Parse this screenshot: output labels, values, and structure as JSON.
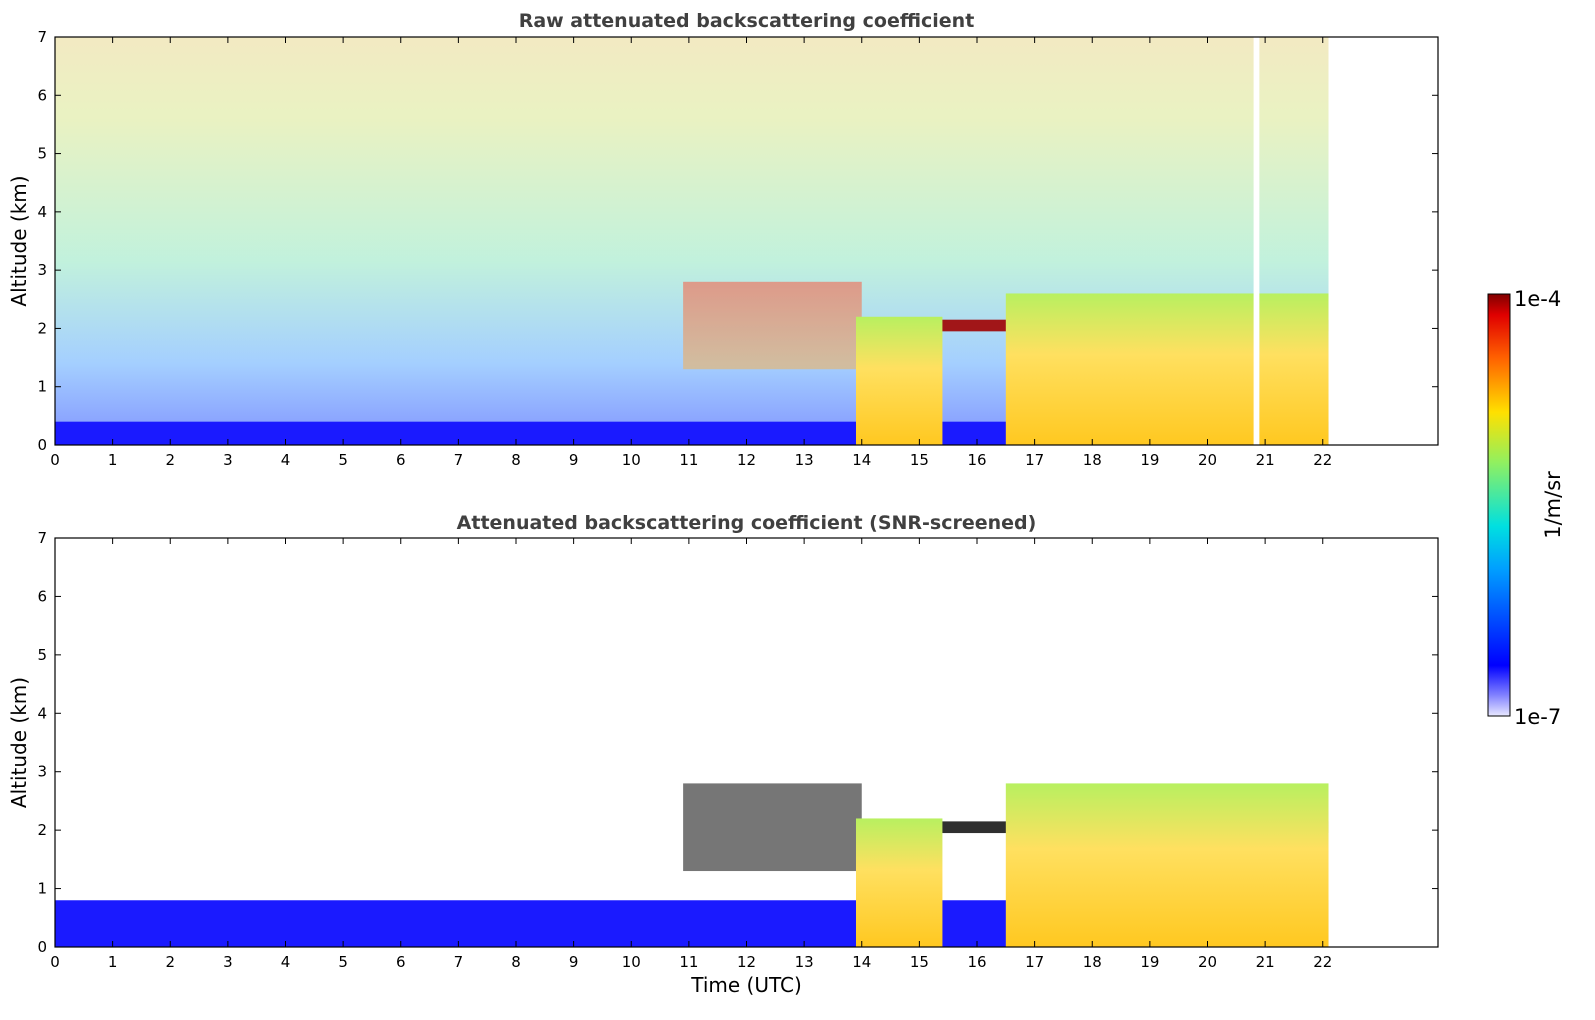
{
  "chart_data": [
    {
      "type": "heatmap",
      "title": "Raw attenuated backscattering coefficient",
      "ylabel": "Altitude (km)",
      "xlabel": "",
      "xlim": [
        0,
        24
      ],
      "ylim": [
        0,
        7
      ],
      "x_ticks": [
        "0",
        "1",
        "2",
        "3",
        "4",
        "5",
        "6",
        "7",
        "8",
        "9",
        "10",
        "11",
        "12",
        "13",
        "14",
        "15",
        "16",
        "17",
        "18",
        "19",
        "20",
        "21",
        "22"
      ],
      "y_ticks": [
        "0",
        "1",
        "2",
        "3",
        "4",
        "5",
        "6",
        "7"
      ],
      "data_end_time": 22.1,
      "features": [
        {
          "kind": "noise_background",
          "x": [
            0,
            22.1
          ],
          "y": [
            0,
            7
          ]
        },
        {
          "kind": "surface_layer",
          "x": [
            0,
            22.1
          ],
          "y": [
            0,
            0.4
          ]
        },
        {
          "kind": "aerosol_layer",
          "x": [
            10.9,
            14
          ],
          "y": [
            1.3,
            2.8
          ]
        },
        {
          "kind": "boundary_layer_top",
          "x": [
            14,
            22.1
          ],
          "y": [
            1.7,
            2.2
          ]
        },
        {
          "kind": "dense_aerosol_column",
          "x": [
            13.9,
            15.4
          ],
          "y": [
            0,
            2.2
          ]
        },
        {
          "kind": "dense_aerosol_column",
          "x": [
            16.5,
            22.1
          ],
          "y": [
            0,
            2.6
          ]
        },
        {
          "kind": "data_gap",
          "x": [
            20.8,
            20.9
          ],
          "y": [
            0,
            7
          ]
        }
      ]
    },
    {
      "type": "heatmap",
      "title": "Attenuated backscattering coefficient (SNR-screened)",
      "ylabel": "Altitude (km)",
      "xlabel": "Time (UTC)",
      "xlim": [
        0,
        24
      ],
      "ylim": [
        0,
        7
      ],
      "x_ticks": [
        "0",
        "1",
        "2",
        "3",
        "4",
        "5",
        "6",
        "7",
        "8",
        "9",
        "10",
        "11",
        "12",
        "13",
        "14",
        "15",
        "16",
        "17",
        "18",
        "19",
        "20",
        "21",
        "22"
      ],
      "y_ticks": [
        "0",
        "1",
        "2",
        "3",
        "4",
        "5",
        "6",
        "7"
      ],
      "data_end_time": 22.1,
      "features": [
        {
          "kind": "surface_layer",
          "x": [
            0,
            22.1
          ],
          "y": [
            0,
            0.8
          ]
        },
        {
          "kind": "aerosol_layer",
          "x": [
            10.9,
            14
          ],
          "y": [
            1.3,
            2.8
          ]
        },
        {
          "kind": "boundary_layer_top",
          "x": [
            14,
            22.1
          ],
          "y": [
            1.7,
            2.2
          ]
        },
        {
          "kind": "dense_aerosol_column",
          "x": [
            13.9,
            15.4
          ],
          "y": [
            0,
            2.2
          ]
        },
        {
          "kind": "dense_aerosol_column",
          "x": [
            16.5,
            22.1
          ],
          "y": [
            0,
            2.8
          ]
        }
      ]
    }
  ],
  "colorbar": {
    "label": "1/m/sr",
    "max_label": "1e-4",
    "min_label": "1e-7",
    "scale": "log",
    "range": [
      1e-07,
      0.0001
    ],
    "colormap": "jet"
  }
}
